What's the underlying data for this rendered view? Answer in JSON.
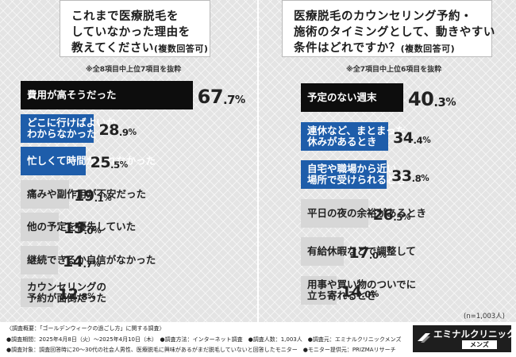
{
  "colors": {
    "black": "#0d0d0d",
    "blue": "#1e5daa",
    "gray": "#d7d7d7",
    "track": "#ffffff"
  },
  "left": {
    "question_lines": [
      "これまで医療脱毛を",
      "していなかった理由を",
      "教えてください"
    ],
    "question_suffix": "(複数回答可)",
    "note": "※全8項目中上位7項目を抜粋"
  },
  "right": {
    "question_lines": [
      "医療脱毛のカウンセリング予約・",
      "施術のタイミングとして、動きやすい",
      "条件はどれですか？"
    ],
    "question_suffix": "(複数回答可)",
    "note": "※全7項目中上位6項目を抜粋",
    "n_label": "(n=1,003人)"
  },
  "chart_data": [
    {
      "type": "bar",
      "title": "これまで医療脱毛をしていなかった理由を教えてください(複数回答可)",
      "unit": "%",
      "categories": [
        "費用が高そうだった",
        "どこに行けばよいかわからなかった",
        "忙しくて時間がとれなかった",
        "痛みや副作用が不安だった",
        "他の予定を優先していた",
        "継続できるか自信がなかった",
        "カウンセリングの予約が面倒だった"
      ],
      "label_lines": [
        [
          "費用が高そうだった"
        ],
        [
          "どこに行けばよいか",
          "わからなかった"
        ],
        [
          "忙しくて時間がとれなかった"
        ],
        [
          "痛みや副作用が不安だった"
        ],
        [
          "他の予定を優先していた"
        ],
        [
          "継続できるか自信がなかった"
        ],
        [
          "カウンセリングの",
          "予約が面倒だった"
        ]
      ],
      "values": [
        67.7,
        28.9,
        25.5,
        19.1,
        15.0,
        14.7,
        12.8
      ],
      "value_text": [
        [
          "67",
          ".7",
          "%"
        ],
        [
          "28",
          ".9",
          "%"
        ],
        [
          "25",
          ".5",
          "%"
        ],
        [
          "19",
          ".1",
          "%"
        ],
        [
          "15",
          ".0",
          "%"
        ],
        [
          "14",
          ".7",
          "%"
        ],
        [
          "12",
          ".8",
          "%"
        ]
      ],
      "styles": [
        "black",
        "blue",
        "blue",
        "gray",
        "gray",
        "gray",
        "gray"
      ]
    },
    {
      "type": "bar",
      "title": "医療脱毛のカウンセリング予約・施術のタイミングとして、動きやすい条件はどれですか？(複数回答可)",
      "unit": "%",
      "categories": [
        "予定のない週末",
        "連休など、まとまった休みがあるとき",
        "自宅や職場から近い場所で受けられるとき",
        "平日の夜の余裕があるとき",
        "有給休暇などで調整して",
        "用事や買い物のついでに立ち寄れるとき"
      ],
      "label_lines": [
        [
          "予定のない週末"
        ],
        [
          "連休など、まとまった",
          "休みがあるとき"
        ],
        [
          "自宅や職場から近い",
          "場所で受けられるとき"
        ],
        [
          "平日の夜の余裕があるとき"
        ],
        [
          "有給休暇などで調整して"
        ],
        [
          "用事や買い物のついでに",
          "立ち寄れるとき"
        ]
      ],
      "values": [
        40.3,
        34.4,
        33.8,
        26.5,
        17.0,
        14.0
      ],
      "value_text": [
        [
          "40",
          ".3",
          "%"
        ],
        [
          "34",
          ".4",
          "%"
        ],
        [
          "33",
          ".8",
          "%"
        ],
        [
          "26",
          ".5",
          "%"
        ],
        [
          "17",
          ".0",
          "%"
        ],
        [
          "14",
          ".0",
          "%"
        ]
      ],
      "styles": [
        "black",
        "blue",
        "blue",
        "gray",
        "gray",
        "gray"
      ]
    }
  ],
  "footer": {
    "lines": [
      "〈調査概要：「ゴールデンウィークの過ごし方」に関する調査〉",
      "●調査期間：2025年4月8日（火）〜2025年4月10日（木）　●調査方法：インターネット調査　●調査人数：1,003人　●調査元：エミナルクリニックメンズ",
      "●調査対象：調査回答時に20〜30代の社会人男性、医療脱毛に興味があるがまだ脱毛していないと回答したモニター　●モニター提供元：PRIZMAリサーチ"
    ]
  },
  "logo": {
    "main": "エミナルクリニック",
    "sub": "メンズ"
  }
}
